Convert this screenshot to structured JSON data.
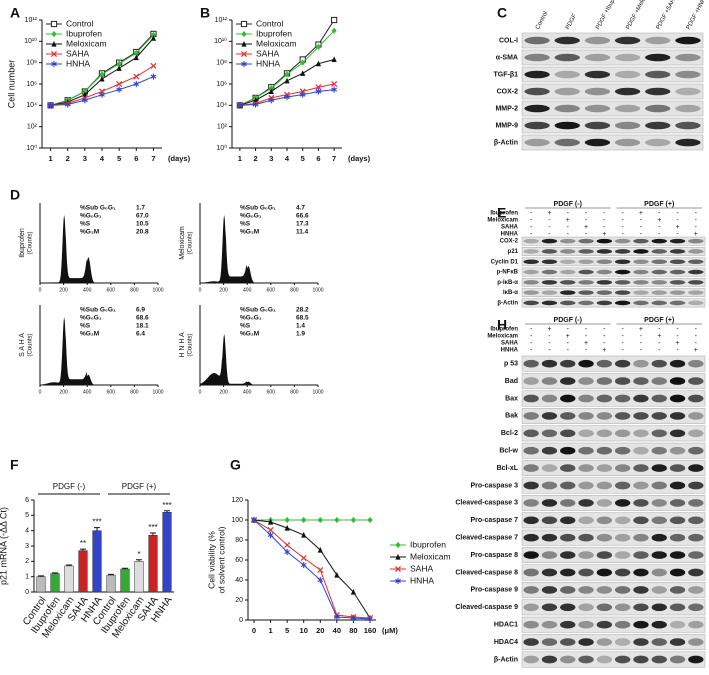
{
  "panel_labels": [
    "A",
    "B",
    "C",
    "D",
    "E",
    "F",
    "G",
    "H"
  ],
  "chart_data": [
    {
      "type": "line",
      "ylabel": "Cell number",
      "xlabel": "(days)",
      "x": [
        1,
        2,
        3,
        4,
        5,
        6,
        7
      ],
      "xlim": [
        0.5,
        7.5
      ],
      "xticks": [
        1,
        2,
        3,
        4,
        5,
        6,
        7
      ],
      "log_y": true,
      "ylim": [
        1,
        1000000000000
      ],
      "yticks": [
        {
          "value": 1,
          "label": "10⁰"
        },
        {
          "value": 100,
          "label": "10²"
        },
        {
          "value": 10000,
          "label": "10⁴"
        },
        {
          "value": 1000000,
          "label": "10⁶"
        },
        {
          "value": 100000000,
          "label": "10⁸"
        },
        {
          "value": 10000000000,
          "label": "10¹⁰"
        },
        {
          "value": 1000000000000,
          "label": "10¹²"
        }
      ],
      "legend": "upper left",
      "series": [
        {
          "name": "Control",
          "color": "#222222",
          "marker": "open-square",
          "values": [
            10000,
            30000,
            200000,
            10000000,
            100000000,
            1000000000,
            50000000000
          ]
        },
        {
          "name": "Ibuprofen",
          "color": "#33bb33",
          "marker": "diamond",
          "values": [
            10000,
            30000,
            200000,
            8000000,
            80000000,
            800000000,
            40000000000
          ]
        },
        {
          "name": "Meloxicam",
          "color": "#111111",
          "marker": "triangle",
          "values": [
            10000,
            20000,
            100000,
            3000000,
            30000000,
            300000000,
            20000000000
          ]
        },
        {
          "name": "SAHA",
          "color": "#dd3333",
          "marker": "cross",
          "values": [
            10000,
            15000,
            50000,
            200000,
            1000000,
            5000000,
            50000000
          ]
        },
        {
          "name": "HNHA",
          "color": "#3344cc",
          "marker": "star",
          "values": [
            10000,
            12000,
            30000,
            100000,
            300000,
            1000000,
            5000000
          ]
        }
      ]
    },
    {
      "type": "line",
      "xlabel": "(days)",
      "x": [
        1,
        2,
        3,
        4,
        5,
        6,
        7
      ],
      "xlim": [
        0.5,
        7.5
      ],
      "xticks": [
        1,
        2,
        3,
        4,
        5,
        6,
        7
      ],
      "log_y": true,
      "ylim": [
        1,
        1000000000000
      ],
      "yticks": [
        {
          "value": 1,
          "label": "10⁰"
        },
        {
          "value": 100,
          "label": "10²"
        },
        {
          "value": 10000,
          "label": "10⁴"
        },
        {
          "value": 1000000,
          "label": "10⁶"
        },
        {
          "value": 100000000,
          "label": "10⁸"
        },
        {
          "value": 10000000000,
          "label": "10¹⁰"
        },
        {
          "value": 1000000000000,
          "label": "10¹²"
        }
      ],
      "legend": "upper left",
      "series": [
        {
          "name": "Control",
          "color": "#222222",
          "marker": "open-square",
          "values": [
            10000,
            50000,
            500000,
            10000000,
            200000000,
            5000000000,
            1000000000000
          ]
        },
        {
          "name": "Ibuprofen",
          "color": "#33bb33",
          "marker": "diamond",
          "values": [
            10000,
            50000,
            400000,
            8000000,
            100000000,
            3000000000,
            100000000000
          ]
        },
        {
          "name": "Meloxicam",
          "color": "#111111",
          "marker": "triangle",
          "values": [
            10000,
            30000,
            200000,
            2000000,
            10000000,
            80000000,
            200000000
          ]
        },
        {
          "name": "SAHA",
          "color": "#dd3333",
          "marker": "cross",
          "values": [
            10000,
            15000,
            50000,
            100000,
            200000,
            500000,
            1000000
          ]
        },
        {
          "name": "HNHA",
          "color": "#3344cc",
          "marker": "star",
          "values": [
            10000,
            12000,
            30000,
            60000,
            100000,
            200000,
            300000
          ]
        }
      ]
    },
    {
      "type": "bar",
      "ylabel": "p21 mRNA (-ΔΔ Ct)",
      "groups": [
        "PDGF (-)",
        "PDGF (+)"
      ],
      "categories": [
        "Control",
        "Ibuprofen",
        "Meloxicam",
        "SAHA",
        "HNHA",
        "Control",
        "Ibuprofen",
        "Meloxicam",
        "SAHA",
        "HNHA"
      ],
      "values": [
        1,
        1.2,
        1.7,
        2.7,
        4,
        1.1,
        1.5,
        2,
        3.7,
        5.2
      ],
      "errors": [
        0.05,
        0.05,
        0.06,
        0.1,
        0.2,
        0.05,
        0.05,
        0.1,
        0.15,
        0.1
      ],
      "colors": [
        "#bbbbbb",
        "#33aa33",
        "#dddddd",
        "#cc2222",
        "#3344cc",
        "#bbbbbb",
        "#33aa33",
        "#dddddd",
        "#cc2222",
        "#3344cc"
      ],
      "annotations": [
        null,
        null,
        null,
        "**",
        "***",
        null,
        null,
        "*",
        "***",
        "***"
      ],
      "ylim": [
        0,
        6
      ],
      "yticks": [
        0,
        1,
        2,
        3,
        4,
        5,
        6
      ]
    },
    {
      "type": "line",
      "ylabel": [
        "Cell viability (%",
        "of solvent control)"
      ],
      "xlabel": "(μM)",
      "categories": [
        "0",
        "1",
        "5",
        "10",
        "20",
        "40",
        "80",
        "160"
      ],
      "ylim": [
        0,
        120
      ],
      "yticks": [
        0,
        20,
        40,
        60,
        80,
        100,
        120
      ],
      "legend": "right",
      "series": [
        {
          "name": "Ibuprofen",
          "color": "#33bb33",
          "marker": "diamond",
          "values": [
            100,
            100,
            100,
            100,
            100,
            100,
            100,
            100
          ]
        },
        {
          "name": "Meloxicam",
          "color": "#111111",
          "marker": "triangle",
          "values": [
            100,
            98,
            92,
            85,
            70,
            45,
            28,
            2
          ]
        },
        {
          "name": "SAHA",
          "color": "#dd3333",
          "marker": "cross",
          "values": [
            100,
            90,
            75,
            62,
            50,
            5,
            3,
            2
          ]
        },
        {
          "name": "HNHA",
          "color": "#3344cc",
          "marker": "star",
          "values": [
            100,
            85,
            68,
            55,
            40,
            3,
            2,
            1
          ]
        }
      ]
    }
  ],
  "blot_c": {
    "columns": [
      "Control",
      "PDGF",
      "PDGF +Ibuprofen",
      "PDGF +Meloxicam",
      "PDGF +SAHA",
      "PDGF +HNHA"
    ],
    "rows": [
      "COL-I",
      "α-SMA",
      "TGF-β1",
      "COX-2",
      "MMP-2",
      "MMP-9",
      "β-Actin"
    ]
  },
  "flow_d": {
    "xticks": [
      0,
      200,
      400,
      600,
      800,
      1000
    ],
    "unit": "(Counts)",
    "panels": [
      {
        "name": "Ibuprofen",
        "stats": [
          [
            "%Sub G₀G₁",
            "1.7"
          ],
          [
            "%G₀G₁",
            "67.0"
          ],
          [
            "%S",
            "10.5"
          ],
          [
            "%G₂M",
            "20.8"
          ]
        ]
      },
      {
        "name": "Meloxicam",
        "stats": [
          [
            "%Sub G₀G₁",
            "4.7"
          ],
          [
            "%G₀G₁",
            "66.6"
          ],
          [
            "%S",
            "17.3"
          ],
          [
            "%G₂M",
            "11.4"
          ]
        ]
      },
      {
        "name": "S A H A",
        "stats": [
          [
            "%Sub G₀G₁",
            "6.9"
          ],
          [
            "%G₀G₁",
            "68.6"
          ],
          [
            "%S",
            "18.1"
          ],
          [
            "%G₂M",
            "6.4"
          ]
        ]
      },
      {
        "name": "H N H A",
        "stats": [
          [
            "%Sub G₀G₁",
            "28.2"
          ],
          [
            "%G₀G₁",
            "68.5"
          ],
          [
            "%S",
            "1.4"
          ],
          [
            "%G₂M",
            "1.9"
          ]
        ]
      }
    ]
  },
  "blot_e": {
    "groups": [
      "PDGF (-)",
      "PDGF (+)"
    ],
    "treatments": [
      "Ibuprofen",
      "Meloxicam",
      "SAHA",
      "HNHA"
    ],
    "signs": [
      [
        "-",
        "+",
        "-",
        "-",
        "-",
        "-",
        "+",
        "-",
        "-",
        "-"
      ],
      [
        "-",
        "-",
        "+",
        "-",
        "-",
        "-",
        "-",
        "+",
        "-",
        "-"
      ],
      [
        "-",
        "-",
        "-",
        "+",
        "-",
        "-",
        "-",
        "-",
        "+",
        "-"
      ],
      [
        "-",
        "-",
        "-",
        "-",
        "+",
        "-",
        "-",
        "-",
        "-",
        "+"
      ]
    ],
    "rows": [
      "COX-2",
      "p21",
      "Cyclin D1",
      "p-NFκB",
      "p-IκB-α",
      "IκB-α",
      "β-Actin"
    ]
  },
  "blot_h": {
    "groups": [
      "PDGF (-)",
      "PDGF (+)"
    ],
    "treatments": [
      "Ibuprofen",
      "Meloxicam",
      "SAHA",
      "HNHA"
    ],
    "signs": [
      [
        "-",
        "+",
        "-",
        "-",
        "-",
        "-",
        "+",
        "-",
        "-",
        "-"
      ],
      [
        "-",
        "-",
        "+",
        "-",
        "-",
        "-",
        "-",
        "+",
        "-",
        "-"
      ],
      [
        "-",
        "-",
        "-",
        "+",
        "-",
        "-",
        "-",
        "-",
        "+",
        "-"
      ],
      [
        "-",
        "-",
        "-",
        "-",
        "+",
        "-",
        "-",
        "-",
        "-",
        "+"
      ]
    ],
    "rows": [
      "p 53",
      "Bad",
      "Bax",
      "Bak",
      "Bcl-2",
      "Bcl-w",
      "Bcl-xL",
      "Pro-caspase 3",
      "Cleaved-caspase 3",
      "Pro-caspase 7",
      "Cleaved-caspase 7",
      "Pro-caspase 8",
      "Cleaved-caspase 8",
      "Pro-caspase 9",
      "Cleaved-caspase 9",
      "HDAC1",
      "HDAC4",
      "β-Actin"
    ]
  }
}
